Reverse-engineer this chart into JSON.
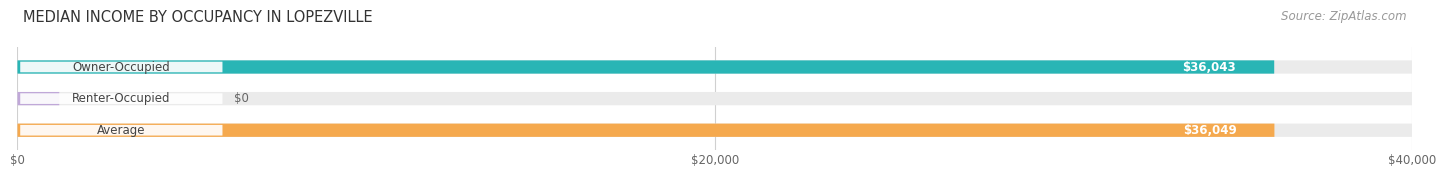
{
  "title": "MEDIAN INCOME BY OCCUPANCY IN LOPEZVILLE",
  "source": "Source: ZipAtlas.com",
  "categories": [
    "Owner-Occupied",
    "Renter-Occupied",
    "Average"
  ],
  "values": [
    36043,
    0,
    36049
  ],
  "bar_colors": [
    "#29b5b5",
    "#c0a8d8",
    "#f5a94e"
  ],
  "bar_bg_color": "#ebebeb",
  "label_values": [
    "$36,043",
    "$0",
    "$36,049"
  ],
  "xlim": [
    0,
    40000
  ],
  "xtick_labels": [
    "$0",
    "$20,000",
    "$40,000"
  ],
  "xtick_vals": [
    0,
    20000,
    40000
  ],
  "title_fontsize": 10.5,
  "source_fontsize": 8.5,
  "bar_label_fontsize": 8.5,
  "value_label_fontsize": 8.5,
  "tick_fontsize": 8.5,
  "bar_height": 0.42,
  "background_color": "#ffffff",
  "grid_color": "#d0d0d0",
  "text_dark": "#444444",
  "text_light": "#ffffff",
  "text_mid": "#666666"
}
